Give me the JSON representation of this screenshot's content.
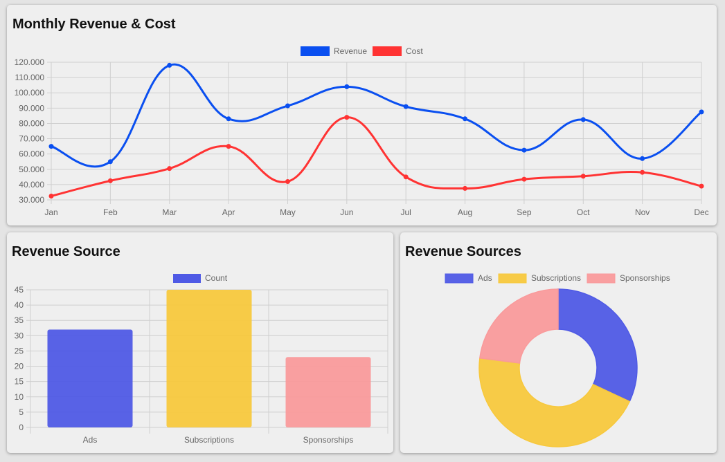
{
  "colors": {
    "revenue": "#0a4ff0",
    "cost": "#ff3333",
    "ads": "#4f5ae5",
    "subscriptions": "#f7c83d",
    "sponsorships": "#f99a9b",
    "grid": "#cfcfcf",
    "tick": "#666666"
  },
  "chart_data": [
    {
      "title": "Monthly Revenue & Cost",
      "type": "line",
      "categories": [
        "Jan",
        "Feb",
        "Mar",
        "Apr",
        "May",
        "Jun",
        "Jul",
        "Aug",
        "Sep",
        "Oct",
        "Nov",
        "Dec"
      ],
      "series": [
        {
          "name": "Revenue",
          "color": "#0a4ff0",
          "values": [
            65000,
            55000,
            118000,
            83000,
            91500,
            104000,
            91000,
            83000,
            62500,
            82500,
            57000,
            87500
          ]
        },
        {
          "name": "Cost",
          "color": "#ff3333",
          "values": [
            32500,
            42500,
            50500,
            65000,
            42000,
            84000,
            45000,
            37500,
            43500,
            45500,
            48000,
            39000
          ]
        }
      ],
      "ylim": [
        30000,
        120000
      ],
      "yticks": [
        "120.000",
        "110.000",
        "100.000",
        "90.000",
        "80.000",
        "70.000",
        "60.000",
        "50.000",
        "40.000",
        "30.000"
      ],
      "grid": true,
      "legend": "top"
    },
    {
      "title": "Revenue Source",
      "type": "bar",
      "categories": [
        "Ads",
        "Subscriptions",
        "Sponsorships"
      ],
      "series": [
        {
          "name": "Count",
          "color": "#4f5ae5",
          "values": [
            32,
            45,
            23
          ]
        }
      ],
      "bar_colors": [
        "#4f5ae5",
        "#f7c83d",
        "#f99a9b"
      ],
      "ylim": [
        0,
        45
      ],
      "yticks": [
        "45",
        "40",
        "35",
        "30",
        "25",
        "20",
        "15",
        "10",
        "5",
        "0"
      ],
      "grid": true,
      "legend": "top"
    },
    {
      "title": "Revenue Sources",
      "type": "pie",
      "labels": [
        "Ads",
        "Subscriptions",
        "Sponsorships"
      ],
      "values": [
        32,
        45,
        23
      ],
      "colors": [
        "#4f5ae5",
        "#f7c83d",
        "#f99a9b"
      ],
      "donut": true,
      "legend": "top"
    }
  ]
}
